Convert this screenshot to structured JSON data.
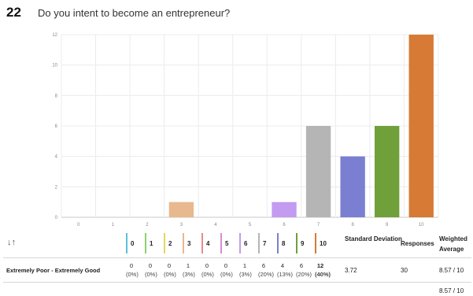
{
  "question": {
    "number": "22",
    "title": "Do you intent to become an entrepreneur?"
  },
  "chart_data": {
    "type": "bar",
    "categories": [
      "0",
      "1",
      "2",
      "3",
      "4",
      "5",
      "6",
      "7",
      "8",
      "9",
      "10"
    ],
    "values": [
      0,
      0,
      0,
      1,
      0,
      0,
      1,
      6,
      4,
      6,
      12
    ],
    "colors": [
      "#5bc0de",
      "#8bd36b",
      "#e5d45b",
      "#e8b88e",
      "#e88a8a",
      "#d98bd4",
      "#c39bf0",
      "#b5b5b5",
      "#7b7fd1",
      "#6fa03a",
      "#d67a35"
    ],
    "ylim": [
      0,
      12
    ],
    "yticks": [
      0,
      2,
      4,
      6,
      8,
      10,
      12
    ],
    "grid": true
  },
  "table": {
    "sort_icon": "sort-icon",
    "columns": [
      {
        "label": "0",
        "color": "#5bc0de"
      },
      {
        "label": "1",
        "color": "#8bd36b"
      },
      {
        "label": "2",
        "color": "#e5d45b"
      },
      {
        "label": "3",
        "color": "#e8b88e"
      },
      {
        "label": "4",
        "color": "#e88a8a"
      },
      {
        "label": "5",
        "color": "#d98bd4"
      },
      {
        "label": "6",
        "color": "#c39bf0"
      },
      {
        "label": "7",
        "color": "#b5b5b5"
      },
      {
        "label": "8",
        "color": "#7b7fd1"
      },
      {
        "label": "9",
        "color": "#6fa03a"
      },
      {
        "label": "10",
        "color": "#d67a35"
      }
    ],
    "stats_headers": {
      "sd": "Standard Deviation",
      "responses": "Responses",
      "wavg": "Weighted Average"
    },
    "row": {
      "label": "Extremely Poor - Extremely Good",
      "cells": [
        {
          "count": "0",
          "pct": "(0%)"
        },
        {
          "count": "0",
          "pct": "(0%)"
        },
        {
          "count": "0",
          "pct": "(0%)"
        },
        {
          "count": "1",
          "pct": "(3%)"
        },
        {
          "count": "0",
          "pct": "(0%)"
        },
        {
          "count": "0",
          "pct": "(0%)"
        },
        {
          "count": "1",
          "pct": "(3%)"
        },
        {
          "count": "6",
          "pct": "(20%)"
        },
        {
          "count": "4",
          "pct": "(13%)"
        },
        {
          "count": "6",
          "pct": "(20%)"
        },
        {
          "count": "12",
          "pct": "(40%)"
        }
      ],
      "sd": "3.72",
      "responses": "30",
      "wavg": "8.57 / 10"
    },
    "footer_wavg": "8.57 / 10"
  }
}
